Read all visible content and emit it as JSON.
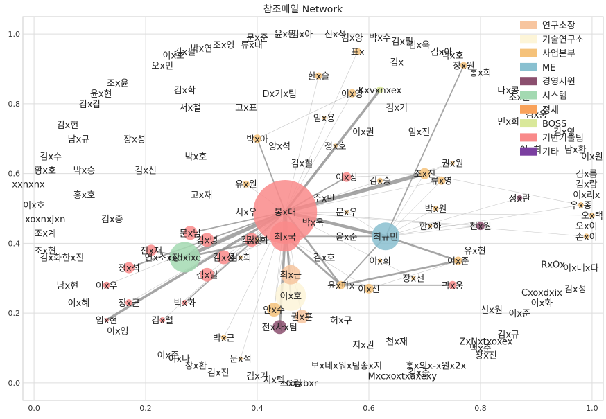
{
  "chart_data": {
    "type": "scatter",
    "title": "참조메일 Network",
    "xlabel": "",
    "ylabel": "",
    "xlim": [
      -0.02,
      1.02
    ],
    "ylim": [
      -0.05,
      1.05
    ],
    "xticks": [
      "0.0",
      "0.2",
      "0.4",
      "0.6",
      "0.8",
      "1.0"
    ],
    "yticks": [
      "0.0",
      "0.2",
      "0.4",
      "0.6",
      "0.8",
      "1.0"
    ],
    "grid": true,
    "legend_position": "top-right",
    "categories": [
      {
        "name": "연구소장",
        "color": "#f7c59f"
      },
      {
        "name": "기술연구소",
        "color": "#fdf5d8"
      },
      {
        "name": "사업본부",
        "color": "#f5c27a"
      },
      {
        "name": "ME",
        "color": "#89c0d0"
      },
      {
        "name": "경영지원",
        "color": "#8b4f6e"
      },
      {
        "name": "시스템",
        "color": "#a3d9b1"
      },
      {
        "name": "정체",
        "color": "#f9a25a"
      },
      {
        "name": "BOSS",
        "color": "#d9e89a"
      },
      {
        "name": "기반기술팀",
        "color": "#f98a8a"
      },
      {
        "name": "기타",
        "color": "#7b3fa0"
      }
    ],
    "nodes": [
      {
        "label": "봉x대",
        "x": 0.45,
        "y": 0.49,
        "size": 46,
        "cat": 8
      },
      {
        "label": "최x국",
        "x": 0.45,
        "y": 0.42,
        "size": 22,
        "cat": 8
      },
      {
        "label": "최규민",
        "x": 0.63,
        "y": 0.42,
        "size": 20,
        "cat": 3
      },
      {
        "label": "rxdxixe",
        "x": 0.27,
        "y": 0.36,
        "size": 22,
        "cat": 5
      },
      {
        "label": "이x호",
        "x": 0.46,
        "y": 0.25,
        "size": 22,
        "cat": 1
      },
      {
        "label": "최x근",
        "x": 0.46,
        "y": 0.31,
        "size": 14,
        "cat": 0
      },
      {
        "label": "문x남",
        "x": 0.28,
        "y": 0.43,
        "size": 10,
        "cat": 8
      },
      {
        "label": "김x녕",
        "x": 0.31,
        "y": 0.41,
        "size": 10,
        "cat": 8
      },
      {
        "label": "김x환",
        "x": 0.39,
        "y": 0.41,
        "size": 10,
        "cat": 8
      },
      {
        "label": "김x성",
        "x": 0.34,
        "y": 0.36,
        "size": 10,
        "cat": 8
      },
      {
        "label": "김x일",
        "x": 0.31,
        "y": 0.31,
        "size": 10,
        "cat": 8
      },
      {
        "label": "전x재",
        "x": 0.21,
        "y": 0.38,
        "size": 8,
        "cat": 8
      },
      {
        "label": "정x석",
        "x": 0.17,
        "y": 0.33,
        "size": 8,
        "cat": 8
      },
      {
        "label": "안x수",
        "x": 0.43,
        "y": 0.21,
        "size": 10,
        "cat": 2
      },
      {
        "label": "권x훈",
        "x": 0.48,
        "y": 0.19,
        "size": 10,
        "cat": 0
      },
      {
        "label": "전x사x팀",
        "x": 0.44,
        "y": 0.16,
        "size": 10,
        "cat": 4
      },
      {
        "label": "윤x파x",
        "x": 0.55,
        "y": 0.28,
        "size": 6,
        "cat": 2
      },
      {
        "label": "이x선",
        "x": 0.6,
        "y": 0.27,
        "size": 7,
        "cat": 2
      },
      {
        "label": "조x진",
        "x": 0.7,
        "y": 0.6,
        "size": 8,
        "cat": 2
      },
      {
        "label": "류x영",
        "x": 0.73,
        "y": 0.58,
        "size": 6,
        "cat": 2
      },
      {
        "label": "이x준",
        "x": 0.76,
        "y": 0.35,
        "size": 6,
        "cat": 2
      },
      {
        "label": "곽x웅",
        "x": 0.75,
        "y": 0.28,
        "size": 6,
        "cat": 8
      },
      {
        "label": "천x원",
        "x": 0.8,
        "y": 0.45,
        "size": 6,
        "cat": 4
      },
      {
        "label": "정x란",
        "x": 0.87,
        "y": 0.53,
        "size": 4,
        "cat": 4
      },
      {
        "label": "이x성",
        "x": 0.56,
        "y": 0.59,
        "size": 7,
        "cat": 8
      },
      {
        "label": "박x아",
        "x": 0.4,
        "y": 0.7,
        "size": 6,
        "cat": 2
      },
      {
        "label": "이x영",
        "x": 0.57,
        "y": 0.83,
        "size": 6,
        "cat": 2
      },
      {
        "label": "한x슬",
        "x": 0.51,
        "y": 0.88,
        "size": 5,
        "cat": 2
      },
      {
        "label": "표x",
        "x": 0.58,
        "y": 0.95,
        "size": 5,
        "cat": 2
      },
      {
        "label": "Kxvxnxex",
        "x": 0.62,
        "y": 0.84,
        "size": 5,
        "cat": 7
      },
      {
        "label": "장x원",
        "x": 0.77,
        "y": 0.91,
        "size": 5,
        "cat": 2
      },
      {
        "label": "유x원",
        "x": 0.38,
        "y": 0.57,
        "size": 5,
        "cat": 2
      },
      {
        "label": "박x화",
        "x": 0.27,
        "y": 0.23,
        "size": 4,
        "cat": 8
      },
      {
        "label": "이x우",
        "x": 0.13,
        "y": 0.28,
        "size": 5,
        "cat": 8
      },
      {
        "label": "정x균",
        "x": 0.17,
        "y": 0.23,
        "size": 5,
        "cat": 8
      },
      {
        "label": "김x렬",
        "x": 0.23,
        "y": 0.18,
        "size": 4,
        "cat": 8
      },
      {
        "label": "박x근",
        "x": 0.34,
        "y": 0.13,
        "size": 4,
        "cat": 2
      },
      {
        "label": "문x석",
        "x": 0.37,
        "y": 0.07,
        "size": 3,
        "cat": 2
      },
      {
        "label": "임x현",
        "x": 0.13,
        "y": 0.18,
        "size": 3,
        "cat": 8
      },
      {
        "label": "박x원",
        "x": 0.72,
        "y": 0.5,
        "size": 4,
        "cat": 2
      },
      {
        "label": "김x승",
        "x": 0.62,
        "y": 0.58,
        "size": 4,
        "cat": 2
      },
      {
        "label": "권x원",
        "x": 0.75,
        "y": 0.63,
        "size": 3,
        "cat": 2
      },
      {
        "label": "우x종",
        "x": 0.98,
        "y": 0.51,
        "size": 4,
        "cat": 2
      },
      {
        "label": "오x택",
        "x": 1.0,
        "y": 0.48,
        "size": 4,
        "cat": 2
      },
      {
        "label": "손x이",
        "x": 0.99,
        "y": 0.42,
        "size": 4,
        "cat": 2
      },
      {
        "label": "문x우",
        "x": 0.56,
        "y": 0.49,
        "size": 3,
        "cat": 2
      },
      {
        "label": "정x호",
        "x": 0.54,
        "y": 0.68,
        "size": 3,
        "cat": 2
      },
      {
        "label": "김x희",
        "x": 0.4,
        "y": 0.41,
        "size": 3,
        "cat": 2
      },
      {
        "label": "김x희",
        "x": 0.37,
        "y": 0.36,
        "size": 3,
        "cat": 2
      },
      {
        "label": "임x용",
        "x": 0.52,
        "y": 0.76,
        "size": 3,
        "cat": 2
      },
      {
        "label": "장x선",
        "x": 0.68,
        "y": 0.3,
        "size": 3,
        "cat": 2
      },
      {
        "label": "이x회",
        "x": 0.62,
        "y": 0.35,
        "size": 3,
        "cat": 2
      },
      {
        "label": "한x하",
        "x": 0.71,
        "y": 0.45,
        "size": 3,
        "cat": 2
      }
    ],
    "extra_labels": [
      {
        "label": "문x준",
        "x": 0.4,
        "y": 0.99
      },
      {
        "label": "류x내",
        "x": 0.39,
        "y": 0.97
      },
      {
        "label": "윤x원",
        "x": 0.45,
        "y": 1.0
      },
      {
        "label": "김x아",
        "x": 0.48,
        "y": 1.0
      },
      {
        "label": "신x석",
        "x": 0.54,
        "y": 1.0
      },
      {
        "label": "김x양",
        "x": 0.57,
        "y": 0.99
      },
      {
        "label": "박x수",
        "x": 0.62,
        "y": 0.99
      },
      {
        "label": "김x필",
        "x": 0.66,
        "y": 0.98
      },
      {
        "label": "김x욱",
        "x": 0.69,
        "y": 0.97
      },
      {
        "label": "김x아",
        "x": 0.73,
        "y": 0.95
      },
      {
        "label": "박x호",
        "x": 0.75,
        "y": 0.94
      },
      {
        "label": "김x",
        "x": 0.65,
        "y": 0.92
      },
      {
        "label": "홍x희",
        "x": 0.8,
        "y": 0.89
      },
      {
        "label": "나x콩",
        "x": 0.85,
        "y": 0.84
      },
      {
        "label": "조x훈",
        "x": 0.87,
        "y": 0.82
      },
      {
        "label": "김x웅",
        "x": 0.9,
        "y": 0.77
      },
      {
        "label": "민x희",
        "x": 0.85,
        "y": 0.75
      },
      {
        "label": "김x영",
        "x": 0.95,
        "y": 0.72
      },
      {
        "label": "이x희",
        "x": 0.89,
        "y": 0.67
      },
      {
        "label": "남x환",
        "x": 0.97,
        "y": 0.67
      },
      {
        "label": "이x원",
        "x": 1.0,
        "y": 0.65
      },
      {
        "label": "김x름",
        "x": 0.99,
        "y": 0.6
      },
      {
        "label": "김x람",
        "x": 0.99,
        "y": 0.57
      },
      {
        "label": "이x리x",
        "x": 0.99,
        "y": 0.54
      },
      {
        "label": "오x이",
        "x": 0.99,
        "y": 0.45
      },
      {
        "label": "RxOx",
        "x": 0.93,
        "y": 0.34
      },
      {
        "label": "이x데x타",
        "x": 0.98,
        "y": 0.33
      },
      {
        "label": "김x성",
        "x": 0.97,
        "y": 0.27
      },
      {
        "label": "Cxoxdxix",
        "x": 0.91,
        "y": 0.26
      },
      {
        "label": "이x화",
        "x": 0.91,
        "y": 0.23
      },
      {
        "label": "이x준",
        "x": 0.87,
        "y": 0.2
      },
      {
        "label": "신x원",
        "x": 0.82,
        "y": 0.21
      },
      {
        "label": "김x규",
        "x": 0.85,
        "y": 0.14
      },
      {
        "label": "ZxNxtxoxex",
        "x": 0.81,
        "y": 0.12
      },
      {
        "label": "백x준",
        "x": 0.8,
        "y": 0.1
      },
      {
        "label": "장x진",
        "x": 0.81,
        "y": 0.08
      },
      {
        "label": "홍x의x-x원x2x",
        "x": 0.72,
        "y": 0.05
      },
      {
        "label": "김x준",
        "x": 0.69,
        "y": 0.03
      },
      {
        "label": "Mxcxoxtxaxexy",
        "x": 0.66,
        "y": 0.02
      },
      {
        "label": "천x재",
        "x": 0.65,
        "y": 0.12
      },
      {
        "label": "지x권",
        "x": 0.59,
        "y": 0.11
      },
      {
        "label": "보x네x워x팀송x지",
        "x": 0.56,
        "y": 0.05
      },
      {
        "label": "허x구",
        "x": 0.55,
        "y": 0.18
      },
      {
        "label": "김x기",
        "x": 0.4,
        "y": 0.02
      },
      {
        "label": "지x텍",
        "x": 0.43,
        "y": 0.01
      },
      {
        "label": "조x림",
        "x": 0.46,
        "y": 0.0
      },
      {
        "label": "Cxxbxr",
        "x": 0.48,
        "y": 0.0
      },
      {
        "label": "김x진",
        "x": 0.33,
        "y": 0.03
      },
      {
        "label": "이x준",
        "x": 0.24,
        "y": 0.08
      },
      {
        "label": "이x나",
        "x": 0.26,
        "y": 0.07
      },
      {
        "label": "장x환",
        "x": 0.29,
        "y": 0.05
      },
      {
        "label": "이x영",
        "x": 0.15,
        "y": 0.15
      },
      {
        "label": "이x혜",
        "x": 0.08,
        "y": 0.23
      },
      {
        "label": "남x현",
        "x": 0.06,
        "y": 0.28
      },
      {
        "label": "김x화",
        "x": 0.03,
        "y": 0.36
      },
      {
        "label": "한x진",
        "x": 0.07,
        "y": 0.36
      },
      {
        "label": "조x현",
        "x": 0.02,
        "y": 0.38
      },
      {
        "label": "연x소x장",
        "x": 0.23,
        "y": 0.36
      },
      {
        "label": "조x계",
        "x": 0.02,
        "y": 0.43
      },
      {
        "label": "xoxnxJxn",
        "x": 0.02,
        "y": 0.47
      },
      {
        "label": "김x중",
        "x": 0.14,
        "y": 0.47
      },
      {
        "label": "이x호",
        "x": 0.0,
        "y": 0.51
      },
      {
        "label": "홍x호",
        "x": 0.09,
        "y": 0.54
      },
      {
        "label": "xxnxnx",
        "x": -0.01,
        "y": 0.57
      },
      {
        "label": "황x호",
        "x": 0.02,
        "y": 0.61
      },
      {
        "label": "박x승",
        "x": 0.09,
        "y": 0.61
      },
      {
        "label": "김x신",
        "x": 0.2,
        "y": 0.61
      },
      {
        "label": "김x수",
        "x": 0.03,
        "y": 0.65
      },
      {
        "label": "남x규",
        "x": 0.08,
        "y": 0.7
      },
      {
        "label": "장x성",
        "x": 0.18,
        "y": 0.7
      },
      {
        "label": "박x호",
        "x": 0.29,
        "y": 0.65
      },
      {
        "label": "김x헌",
        "x": 0.06,
        "y": 0.74
      },
      {
        "label": "김x갑",
        "x": 0.1,
        "y": 0.8
      },
      {
        "label": "윤x현",
        "x": 0.12,
        "y": 0.83
      },
      {
        "label": "조x윤",
        "x": 0.15,
        "y": 0.86
      },
      {
        "label": "김x학",
        "x": 0.27,
        "y": 0.84
      },
      {
        "label": "서x철",
        "x": 0.28,
        "y": 0.79
      },
      {
        "label": "오x민",
        "x": 0.23,
        "y": 0.91
      },
      {
        "label": "이x호",
        "x": 0.25,
        "y": 0.94
      },
      {
        "label": "김x필",
        "x": 0.27,
        "y": 0.95
      },
      {
        "label": "박x연",
        "x": 0.3,
        "y": 0.96
      },
      {
        "label": "조x영",
        "x": 0.34,
        "y": 0.97
      },
      {
        "label": "Dx기x팀",
        "x": 0.44,
        "y": 0.83
      },
      {
        "label": "고x표",
        "x": 0.38,
        "y": 0.79
      },
      {
        "label": "양x석",
        "x": 0.44,
        "y": 0.68
      },
      {
        "label": "김x철",
        "x": 0.48,
        "y": 0.63
      },
      {
        "label": "이x권",
        "x": 0.59,
        "y": 0.72
      },
      {
        "label": "임x진",
        "x": 0.69,
        "y": 0.72
      },
      {
        "label": "김x기",
        "x": 0.65,
        "y": 0.79
      },
      {
        "label": "고x재",
        "x": 0.3,
        "y": 0.54
      },
      {
        "label": "서x우",
        "x": 0.38,
        "y": 0.49
      },
      {
        "label": "주x만",
        "x": 0.52,
        "y": 0.53
      },
      {
        "label": "박x욱",
        "x": 0.5,
        "y": 0.46
      },
      {
        "label": "윤x준",
        "x": 0.56,
        "y": 0.42
      },
      {
        "label": "김x호",
        "x": 0.52,
        "y": 0.36
      },
      {
        "label": "유x현",
        "x": 0.79,
        "y": 0.38
      }
    ],
    "edges": [
      [
        0,
        1,
        7
      ],
      [
        0,
        2,
        5
      ],
      [
        0,
        3,
        6
      ],
      [
        0,
        18,
        6
      ],
      [
        0,
        4,
        3
      ],
      [
        0,
        16,
        3
      ],
      [
        0,
        24,
        2
      ],
      [
        0,
        25,
        2
      ],
      [
        0,
        29,
        4
      ],
      [
        0,
        32,
        2
      ],
      [
        0,
        38,
        4
      ],
      [
        0,
        12,
        2
      ],
      [
        0,
        6,
        2
      ],
      [
        1,
        3,
        3
      ],
      [
        1,
        2,
        2
      ],
      [
        1,
        16,
        3
      ],
      [
        1,
        15,
        4
      ],
      [
        2,
        20,
        3
      ],
      [
        2,
        16,
        2
      ],
      [
        2,
        30,
        2
      ],
      [
        16,
        21,
        2
      ],
      [
        16,
        20,
        3
      ],
      [
        3,
        7,
        2
      ],
      [
        3,
        11,
        2
      ],
      [
        0,
        27,
        1
      ],
      [
        0,
        26,
        1
      ],
      [
        0,
        28,
        1
      ],
      [
        0,
        19,
        1
      ],
      [
        0,
        22,
        1
      ],
      [
        0,
        40,
        1
      ],
      [
        0,
        41,
        1
      ],
      [
        0,
        43,
        1
      ],
      [
        0,
        44,
        1
      ],
      [
        0,
        31,
        1
      ],
      [
        0,
        9,
        1
      ],
      [
        0,
        10,
        1
      ],
      [
        0,
        13,
        1
      ],
      [
        0,
        14,
        1
      ],
      [
        0,
        5,
        1
      ],
      [
        0,
        33,
        1
      ],
      [
        0,
        34,
        1
      ],
      [
        0,
        36,
        1
      ],
      [
        0,
        37,
        1
      ],
      [
        2,
        18,
        1
      ],
      [
        2,
        19,
        1
      ],
      [
        2,
        22,
        1
      ],
      [
        2,
        23,
        1
      ],
      [
        2,
        39,
        1
      ],
      [
        2,
        42,
        1
      ],
      [
        2,
        45,
        1
      ],
      [
        18,
        41,
        1
      ],
      [
        18,
        42,
        1
      ],
      [
        25,
        26,
        1
      ],
      [
        1,
        8,
        1
      ],
      [
        1,
        9,
        1
      ],
      [
        1,
        13,
        1
      ],
      [
        1,
        14,
        1
      ],
      [
        17,
        20,
        1
      ],
      [
        24,
        18,
        1
      ],
      [
        26,
        29,
        1
      ],
      [
        0,
        47,
        1
      ],
      [
        0,
        46,
        1
      ],
      [
        0,
        48,
        1
      ],
      [
        0,
        50,
        1
      ],
      [
        0,
        35,
        1
      ],
      [
        1,
        17,
        1
      ]
    ]
  }
}
